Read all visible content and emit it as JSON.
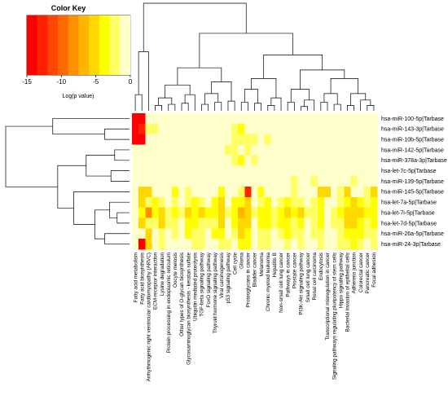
{
  "chart_data": {
    "type": "heatmap",
    "title": "",
    "color_key": {
      "title": "Color Key",
      "xlabel": "Log(p value)",
      "range": [
        -15,
        0
      ],
      "ticks": [
        -15,
        -10,
        -5,
        0
      ],
      "colors": [
        "#ff0000",
        "#ff2000",
        "#ff4500",
        "#ff6a00",
        "#ff9000",
        "#ffb500",
        "#ffd800",
        "#ffff00",
        "#ffff66",
        "#ffffcc"
      ]
    },
    "rows": [
      "hsa-miR-100-5p|Tarbase",
      "hsa-miR-143-3p|Tarbase",
      "hsa-miR-10b-5p|Tarbase",
      "hsa-miR-142-5p|Tarbase",
      "hsa-miR-378a-3p|Tarbase",
      "hsa-let-7c-5p|Tarbase",
      "hsa-miR-139-5p|Tarbase",
      "hsa-miR-145-5p|Tarbase",
      "hsa-let-7a-5p|Tarbase",
      "hsa-let-7i-5p|Tarbase",
      "hsa-let-7d-5p|Tarbase",
      "hsa-miR-26a-5p|Tarbase",
      "hsa-miR-24-3p|Tarbase"
    ],
    "columns": [
      "Fatty acid metabolism",
      "Fatty acid biosynthesis",
      "Arrhythmogenic right ventricular cardiomyopathy (ARVC)",
      "ECM-receptor interaction",
      "Lysine degradation",
      "Protein processing in endoplasmic reticulum",
      "Oocyte meiosis",
      "Other types of O-glycan biosynthesis",
      "Glycosaminoglycan biosynthesis - keratan sulfate",
      "Ubiquitin mediated proteolysis",
      "TGF-beta signaling pathway",
      "FoxO signaling pathway",
      "Thyroid hormone signaling pathway",
      "Viral carcinogenesis",
      "p53 signaling pathway",
      "Cell cycle",
      "Glioma",
      "Proteoglycans in cancer",
      "Bladder cancer",
      "Melanoma",
      "Chronic myeloid leukemia",
      "Hepatitis B",
      "Non-small cell lung cancer",
      "Pathways in cancer",
      "Prostate cancer",
      "PI3K-Akt signaling pathway",
      "Small cell lung cancer",
      "Renal cell carcinoma",
      "Endocytosis",
      "Transcriptional misregulation in cancer",
      "Signaling pathways regulating pluripotency of stem cells",
      "Hippo signaling pathway",
      "Bacterial invasion of epithelial cells",
      "Adherens junction",
      "Colorectal cancer",
      "Pancreatic cancer",
      "Focal adhesion"
    ],
    "values": [
      [
        -15,
        -14,
        0,
        0,
        0,
        0,
        0,
        0,
        0,
        0,
        0,
        0,
        0,
        0,
        0,
        0,
        0,
        0,
        0,
        0,
        0,
        0,
        0,
        0,
        0,
        0,
        0,
        0,
        0,
        0,
        0,
        0,
        0,
        0,
        0,
        0,
        0
      ],
      [
        -15,
        -13,
        -3,
        -3,
        0,
        0,
        0,
        0,
        0,
        0,
        0,
        0,
        0,
        0,
        0,
        -2,
        -4,
        0,
        0,
        0,
        0,
        0,
        0,
        0,
        0,
        0,
        0,
        0,
        0,
        0,
        0,
        0,
        0,
        0,
        0,
        0,
        0
      ],
      [
        -15,
        -14,
        0,
        0,
        0,
        0,
        0,
        0,
        0,
        0,
        0,
        0,
        0,
        0,
        0,
        -3,
        -3,
        -2,
        -3,
        0,
        -2,
        0,
        0,
        0,
        0,
        0,
        0,
        0,
        0,
        0,
        0,
        0,
        0,
        0,
        0,
        0,
        0
      ],
      [
        0,
        0,
        0,
        0,
        0,
        0,
        0,
        0,
        0,
        0,
        0,
        0,
        0,
        0,
        -2,
        -3,
        0,
        -2,
        0,
        0,
        0,
        0,
        0,
        0,
        0,
        0,
        0,
        0,
        0,
        0,
        0,
        0,
        0,
        0,
        0,
        0,
        0
      ],
      [
        0,
        0,
        0,
        0,
        0,
        0,
        0,
        0,
        0,
        0,
        0,
        0,
        0,
        0,
        0,
        -2,
        -4,
        0,
        -3,
        0,
        0,
        0,
        0,
        0,
        0,
        0,
        0,
        0,
        0,
        0,
        0,
        0,
        0,
        0,
        0,
        0,
        0
      ],
      [
        0,
        0,
        0,
        0,
        0,
        0,
        0,
        0,
        0,
        0,
        0,
        0,
        0,
        0,
        0,
        0,
        0,
        0,
        0,
        0,
        0,
        0,
        0,
        0,
        0,
        0,
        0,
        0,
        0,
        0,
        0,
        0,
        0,
        0,
        0,
        0,
        0
      ],
      [
        0,
        0,
        0,
        0,
        0,
        0,
        0,
        0,
        0,
        0,
        0,
        0,
        0,
        0,
        0,
        0,
        0,
        0,
        0,
        0,
        0,
        0,
        0,
        0,
        -2,
        0,
        0,
        -2,
        0,
        0,
        0,
        0,
        0,
        -3,
        0,
        0,
        0
      ],
      [
        0,
        -5,
        -5,
        0,
        0,
        0,
        -4,
        0,
        -3,
        0,
        0,
        0,
        0,
        -4,
        0,
        0,
        -3,
        -13,
        0,
        -4,
        0,
        0,
        0,
        0,
        -3,
        0,
        0,
        0,
        -5,
        -5,
        0,
        -3,
        -6,
        0,
        0,
        -3,
        -6
      ],
      [
        0,
        -5,
        -3,
        -4,
        -3,
        0,
        -3,
        0,
        -2,
        -4,
        -3,
        0,
        -4,
        -5,
        0,
        -4,
        -4,
        -5,
        0,
        -3,
        -4,
        0,
        -3,
        -4,
        -3,
        -3,
        0,
        -3,
        -4,
        0,
        0,
        -3,
        -4,
        -6,
        -4,
        -3,
        -4
      ],
      [
        0,
        -4,
        -9,
        -4,
        -5,
        -3,
        -4,
        -2,
        -5,
        -4,
        -5,
        -4,
        -4,
        -5,
        -2,
        -4,
        -7,
        -5,
        -2,
        -4,
        -4,
        -2,
        -4,
        -5,
        -4,
        -5,
        -3,
        -3,
        -4,
        0,
        -3,
        -4,
        -6,
        -5,
        -5,
        -4,
        -4
      ],
      [
        0,
        -5,
        -3,
        -3,
        -5,
        -3,
        -3,
        0,
        -4,
        -4,
        -3,
        -3,
        -3,
        -5,
        0,
        -4,
        -5,
        -5,
        0,
        -4,
        -4,
        -3,
        -4,
        -4,
        -3,
        -4,
        0,
        -3,
        -4,
        0,
        -3,
        -3,
        -5,
        -5,
        -4,
        -3,
        -4
      ],
      [
        0,
        0,
        -5,
        0,
        -3,
        0,
        -3,
        0,
        -4,
        -3,
        -3,
        0,
        -4,
        -4,
        0,
        -3,
        -5,
        -4,
        0,
        -3,
        -3,
        0,
        -3,
        -4,
        -3,
        -3,
        0,
        -3,
        -3,
        0,
        0,
        -3,
        -4,
        -4,
        -4,
        -3,
        -3
      ],
      [
        0,
        -15,
        -5,
        0,
        -3,
        0,
        0,
        0,
        0,
        -3,
        -3,
        0,
        0,
        -3,
        -2,
        0,
        -4,
        -4,
        0,
        -3,
        -3,
        0,
        0,
        -3,
        0,
        -3,
        0,
        0,
        -3,
        0,
        0,
        -3,
        -3,
        -4,
        -3,
        0,
        -3
      ]
    ]
  }
}
